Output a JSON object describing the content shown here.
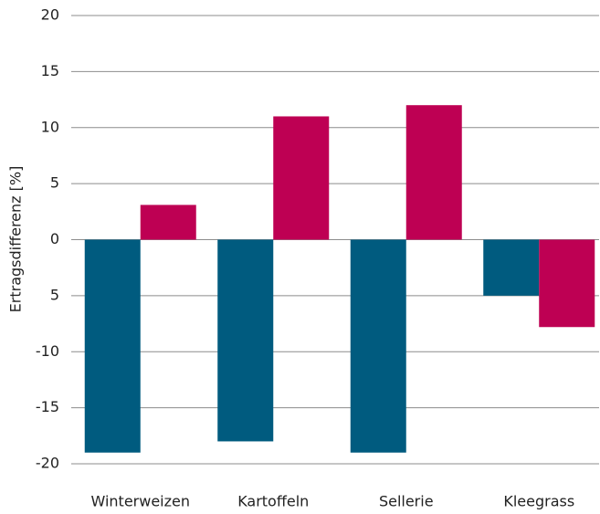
{
  "chart_data": {
    "type": "bar",
    "y_label": "Ertragsdifferenz [%]",
    "categories": [
      "Winterweizen",
      "Kartoffeln",
      "Sellerie",
      "Kleegrass"
    ],
    "series": [
      {
        "color": "#005b7f",
        "values": [
          -19,
          -18,
          -19,
          -5
        ]
      },
      {
        "color": "#be0053",
        "values": [
          3.1,
          11,
          12,
          -7.8
        ]
      }
    ],
    "ylim": [
      -20,
      20
    ],
    "yticks": [
      20,
      15,
      10,
      5,
      0,
      {
        "value": -5,
        "label": "5"
      },
      -10,
      -15,
      -20
    ],
    "grid": true
  }
}
